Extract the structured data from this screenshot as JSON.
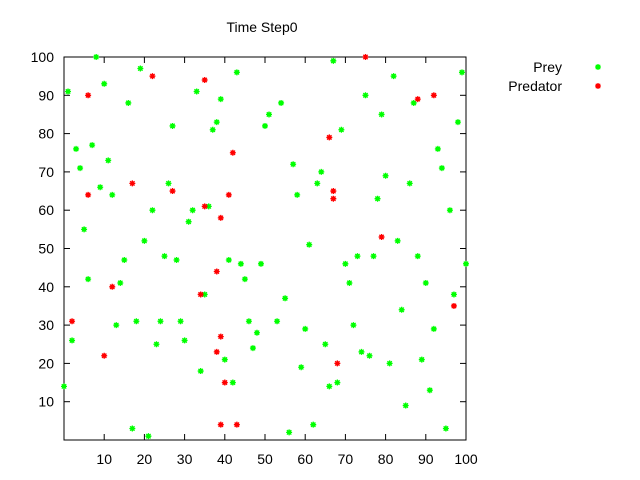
{
  "chart_data": {
    "type": "scatter",
    "title": "Time Step0",
    "xlabel": "",
    "ylabel": "",
    "xlim": [
      0,
      100
    ],
    "ylim": [
      0,
      100
    ],
    "x_ticks": [
      10,
      20,
      30,
      40,
      50,
      60,
      70,
      80,
      90,
      100
    ],
    "y_ticks": [
      10,
      20,
      30,
      40,
      50,
      60,
      70,
      80,
      90,
      100
    ],
    "grid": false,
    "legend_position": "outside-right",
    "series": [
      {
        "name": "Prey",
        "color": "#00ff00",
        "points": [
          [
            0,
            14
          ],
          [
            1,
            91
          ],
          [
            2,
            26
          ],
          [
            3,
            76
          ],
          [
            4,
            71
          ],
          [
            5,
            55
          ],
          [
            6,
            42
          ],
          [
            7,
            77
          ],
          [
            8,
            100
          ],
          [
            9,
            66
          ],
          [
            10,
            93
          ],
          [
            11,
            73
          ],
          [
            12,
            64
          ],
          [
            13,
            30
          ],
          [
            14,
            41
          ],
          [
            15,
            47
          ],
          [
            16,
            88
          ],
          [
            17,
            3
          ],
          [
            18,
            31
          ],
          [
            19,
            97
          ],
          [
            20,
            52
          ],
          [
            21,
            1
          ],
          [
            22,
            60
          ],
          [
            23,
            25
          ],
          [
            24,
            31
          ],
          [
            25,
            48
          ],
          [
            26,
            67
          ],
          [
            27,
            82
          ],
          [
            28,
            47
          ],
          [
            29,
            31
          ],
          [
            30,
            26
          ],
          [
            31,
            57
          ],
          [
            32,
            60
          ],
          [
            33,
            91
          ],
          [
            34,
            18
          ],
          [
            35,
            38
          ],
          [
            36,
            61
          ],
          [
            37,
            81
          ],
          [
            38,
            83
          ],
          [
            39,
            89
          ],
          [
            40,
            21
          ],
          [
            41,
            47
          ],
          [
            42,
            15
          ],
          [
            43,
            96
          ],
          [
            44,
            46
          ],
          [
            45,
            42
          ],
          [
            46,
            31
          ],
          [
            47,
            24
          ],
          [
            48,
            28
          ],
          [
            49,
            46
          ],
          [
            50,
            82
          ],
          [
            51,
            85
          ],
          [
            53,
            31
          ],
          [
            54,
            88
          ],
          [
            55,
            37
          ],
          [
            56,
            2
          ],
          [
            57,
            72
          ],
          [
            58,
            64
          ],
          [
            59,
            19
          ],
          [
            60,
            29
          ],
          [
            61,
            51
          ],
          [
            62,
            4
          ],
          [
            63,
            67
          ],
          [
            64,
            70
          ],
          [
            65,
            25
          ],
          [
            66,
            14
          ],
          [
            67,
            99
          ],
          [
            68,
            15
          ],
          [
            69,
            81
          ],
          [
            70,
            46
          ],
          [
            71,
            41
          ],
          [
            72,
            30
          ],
          [
            73,
            48
          ],
          [
            74,
            23
          ],
          [
            75,
            90
          ],
          [
            76,
            22
          ],
          [
            77,
            48
          ],
          [
            78,
            63
          ],
          [
            79,
            85
          ],
          [
            80,
            69
          ],
          [
            81,
            20
          ],
          [
            82,
            95
          ],
          [
            83,
            52
          ],
          [
            84,
            34
          ],
          [
            85,
            9
          ],
          [
            86,
            67
          ],
          [
            87,
            88
          ],
          [
            88,
            48
          ],
          [
            89,
            21
          ],
          [
            90,
            41
          ],
          [
            91,
            13
          ],
          [
            92,
            29
          ],
          [
            93,
            76
          ],
          [
            94,
            71
          ],
          [
            95,
            3
          ],
          [
            96,
            60
          ],
          [
            97,
            38
          ],
          [
            98,
            83
          ],
          [
            99,
            96
          ],
          [
            100,
            46
          ]
        ]
      },
      {
        "name": "Predator",
        "color": "#ff0000",
        "points": [
          [
            2,
            31
          ],
          [
            6,
            90
          ],
          [
            6,
            64
          ],
          [
            10,
            22
          ],
          [
            12,
            40
          ],
          [
            17,
            67
          ],
          [
            22,
            95
          ],
          [
            27,
            65
          ],
          [
            34,
            38
          ],
          [
            35,
            94
          ],
          [
            35,
            61
          ],
          [
            38,
            23
          ],
          [
            38,
            44
          ],
          [
            39,
            58
          ],
          [
            39,
            27
          ],
          [
            39,
            4
          ],
          [
            40,
            15
          ],
          [
            41,
            64
          ],
          [
            42,
            75
          ],
          [
            43,
            4
          ],
          [
            66,
            79
          ],
          [
            67,
            63
          ],
          [
            67,
            65
          ],
          [
            68,
            20
          ],
          [
            75,
            100
          ],
          [
            79,
            53
          ],
          [
            88,
            89
          ],
          [
            92,
            90
          ],
          [
            97,
            35
          ]
        ]
      }
    ]
  }
}
